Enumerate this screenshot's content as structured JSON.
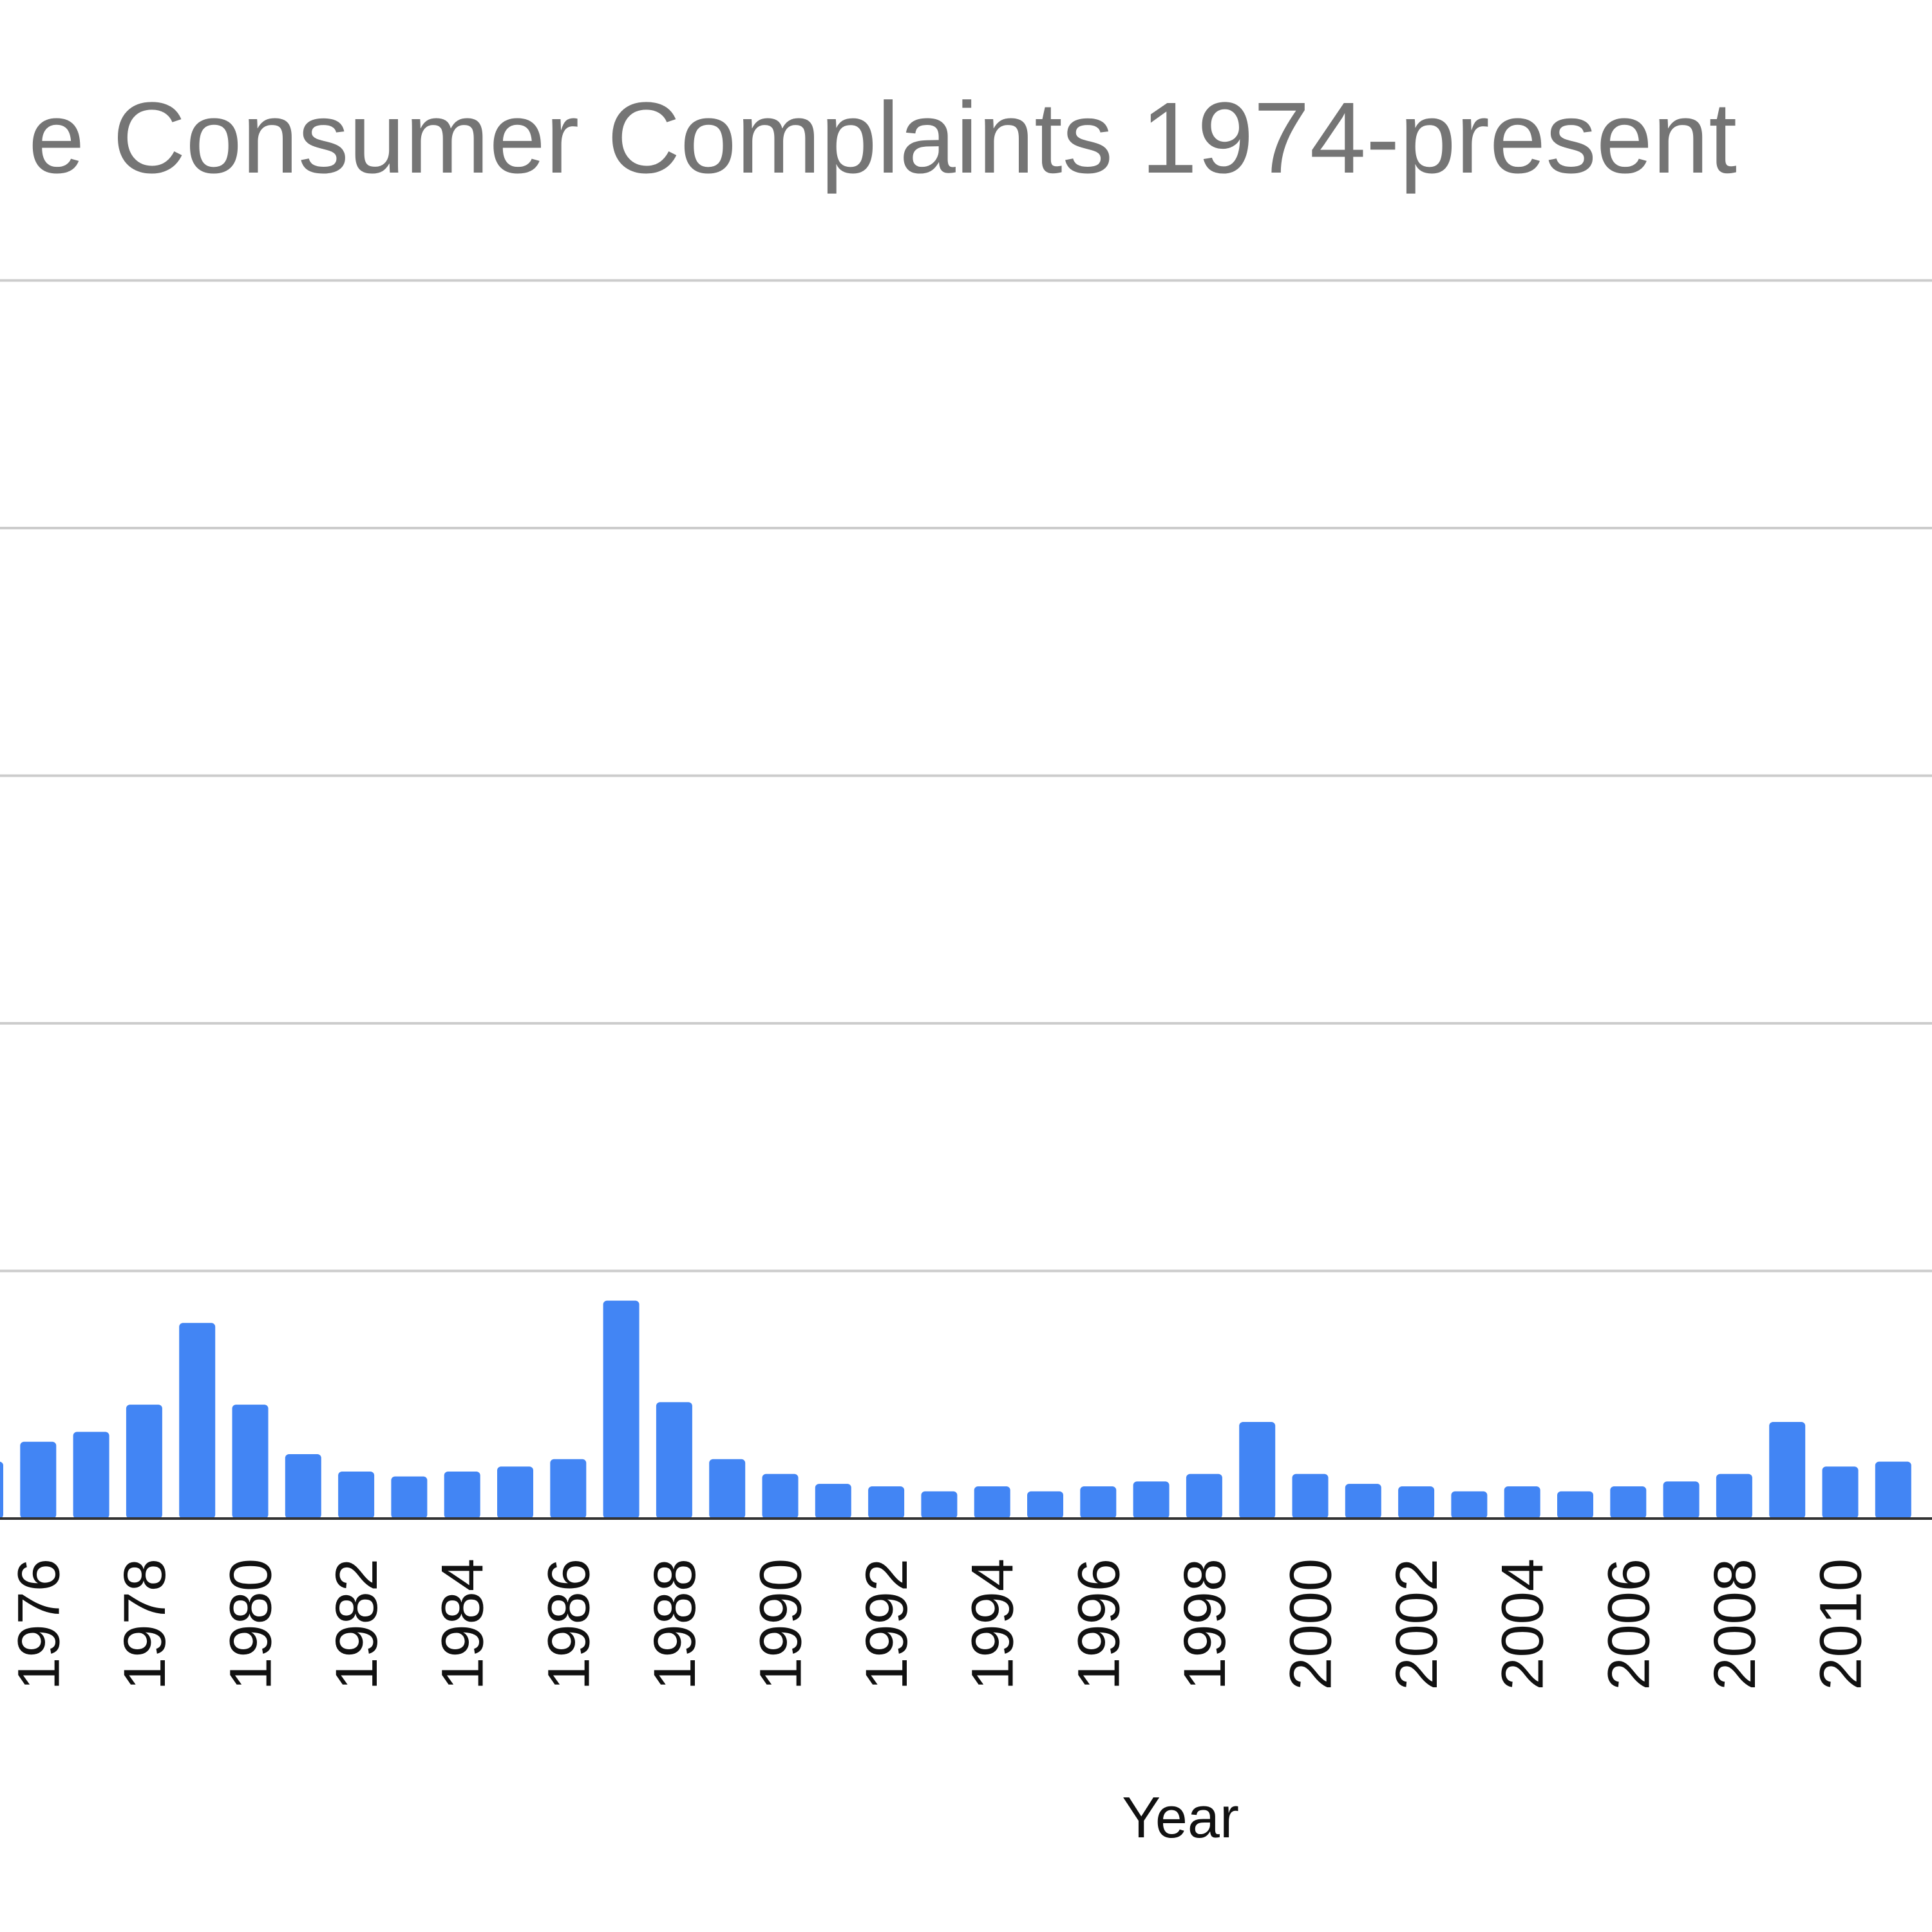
{
  "chart_data": {
    "type": "bar",
    "title": "e Consumer Complaints 1974-present",
    "xlabel": "Year",
    "ylabel": "",
    "ylim": [
      0,
      50
    ],
    "grid": true,
    "legend": "none",
    "bar_color": "#4285f4",
    "tick_labels": [
      "1976",
      "1978",
      "1980",
      "1982",
      "1984",
      "1986",
      "1988",
      "1990",
      "1992",
      "1994",
      "1996",
      "1998",
      "2000",
      "2002",
      "2004",
      "2006",
      "2008",
      "2010"
    ],
    "categories": [
      "1975",
      "1976",
      "1977",
      "1978",
      "1979",
      "1980",
      "1981",
      "1982",
      "1983",
      "1984",
      "1985",
      "1986",
      "1987",
      "1988",
      "1989",
      "1990",
      "1991",
      "1992",
      "1993",
      "1994",
      "1995",
      "1996",
      "1997",
      "1998",
      "1999",
      "2000",
      "2001",
      "2002",
      "2003",
      "2004",
      "2005",
      "2006",
      "2007",
      "2008",
      "2009",
      "2010",
      "2011"
    ],
    "values": [
      2.3,
      3.1,
      3.5,
      4.6,
      7.9,
      4.6,
      2.6,
      1.9,
      1.7,
      1.9,
      2.1,
      2.4,
      8.8,
      4.7,
      2.4,
      1.8,
      1.4,
      1.3,
      1.1,
      1.3,
      1.1,
      1.3,
      1.5,
      1.8,
      3.9,
      1.8,
      1.4,
      1.3,
      1.1,
      1.3,
      1.1,
      1.3,
      1.5,
      1.8,
      3.9,
      2.1,
      2.3
    ]
  }
}
